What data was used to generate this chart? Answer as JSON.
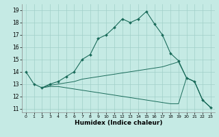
{
  "background_color": "#c5eae4",
  "grid_color": "#a0cfc8",
  "line_color": "#1a6b5a",
  "xlabel": "Humidex (Indice chaleur)",
  "ylim": [
    10.7,
    19.5
  ],
  "xlim": [
    -0.5,
    23.5
  ],
  "yticks": [
    11,
    12,
    13,
    14,
    15,
    16,
    17,
    18,
    19
  ],
  "xticks": [
    0,
    1,
    2,
    3,
    4,
    5,
    6,
    7,
    8,
    9,
    10,
    11,
    12,
    13,
    14,
    15,
    16,
    17,
    18,
    19,
    20,
    21,
    22,
    23
  ],
  "line1_x": [
    0,
    1,
    2,
    3,
    4,
    5,
    6,
    7,
    8,
    9,
    10,
    11,
    12,
    13,
    14,
    15,
    16,
    17,
    18,
    19,
    20,
    21,
    22,
    23
  ],
  "line1_y": [
    14.0,
    13.0,
    12.7,
    13.0,
    13.2,
    13.6,
    14.0,
    15.0,
    15.4,
    16.7,
    17.0,
    17.6,
    18.3,
    18.0,
    18.3,
    18.9,
    17.9,
    17.0,
    15.5,
    14.9,
    13.5,
    13.2,
    11.7,
    11.1
  ],
  "line2_x": [
    2,
    3,
    4,
    5,
    6,
    7,
    8,
    9,
    10,
    11,
    12,
    13,
    14,
    15,
    16,
    17,
    18,
    19,
    20,
    21,
    22,
    23
  ],
  "line2_y": [
    12.7,
    12.9,
    13.0,
    13.1,
    13.2,
    13.4,
    13.5,
    13.6,
    13.7,
    13.8,
    13.9,
    14.0,
    14.1,
    14.2,
    14.3,
    14.4,
    14.6,
    14.8,
    13.5,
    13.2,
    11.7,
    11.1
  ],
  "line3_x": [
    2,
    3,
    4,
    5,
    6,
    7,
    8,
    9,
    10,
    11,
    12,
    13,
    14,
    15,
    16,
    17,
    18,
    19,
    20,
    21,
    22,
    23
  ],
  "line3_y": [
    12.7,
    12.8,
    12.8,
    12.7,
    12.6,
    12.5,
    12.4,
    12.3,
    12.2,
    12.1,
    12.0,
    11.9,
    11.8,
    11.7,
    11.6,
    11.5,
    11.4,
    11.4,
    13.5,
    13.2,
    11.7,
    11.1
  ]
}
